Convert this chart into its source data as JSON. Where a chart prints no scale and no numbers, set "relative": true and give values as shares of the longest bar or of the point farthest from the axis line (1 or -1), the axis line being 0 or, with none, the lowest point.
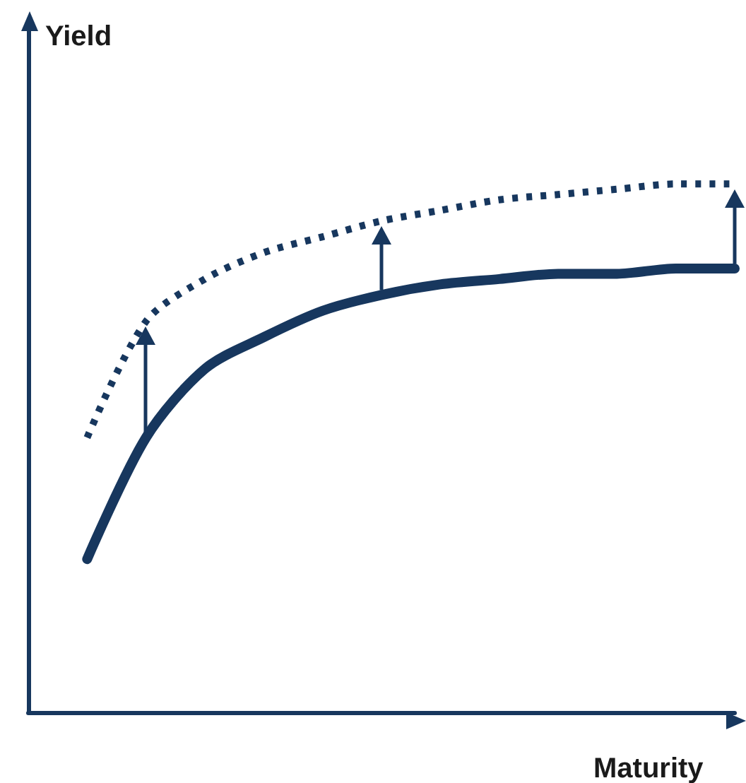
{
  "chart_data": {
    "type": "line",
    "relative": true,
    "xlabel": "Maturity",
    "ylabel": "Yield",
    "categories": [
      null,
      null,
      null,
      null,
      null,
      null,
      null,
      null,
      null,
      null,
      null,
      null
    ],
    "series": [
      {
        "color": "#17375e",
        "line_style": "dotted",
        "values": [
          0.52,
          0.74,
          0.82,
          0.87,
          0.9,
          0.93,
          0.95,
          0.97,
          0.98,
          0.99,
          1.0,
          1.0
        ]
      },
      {
        "color": "#17375e",
        "line_style": "solid",
        "values": [
          0.29,
          0.52,
          0.65,
          0.71,
          0.76,
          0.79,
          0.81,
          0.82,
          0.83,
          0.83,
          0.84,
          0.84
        ]
      }
    ],
    "grid": false,
    "marker": "none"
  }
}
